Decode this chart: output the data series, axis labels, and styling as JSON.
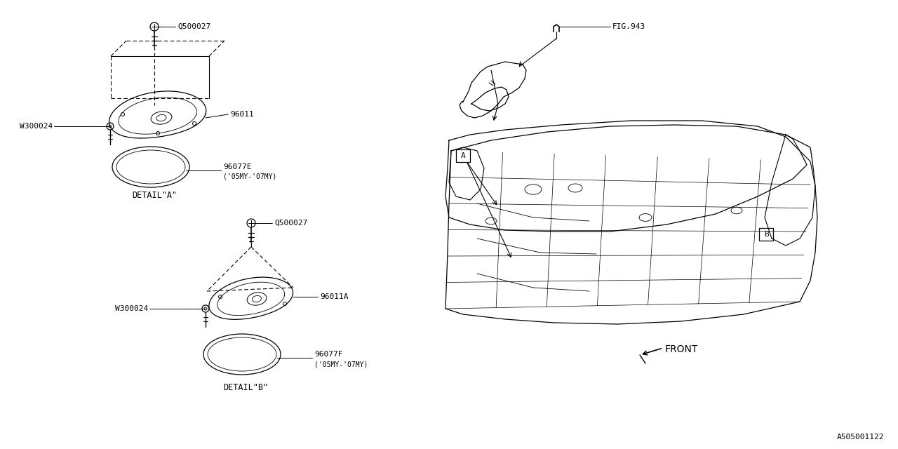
{
  "bg_color": "#FFFFFF",
  "line_color": "#000000",
  "fig_width": 12.8,
  "fig_height": 6.4,
  "dpi": 100,
  "bottom_right_label": "A505001122",
  "detail_a_label": "DETAIL\"A\"",
  "detail_b_label": "DETAIL\"B\"",
  "fig943_label": "FIG.943",
  "front_label": "FRONT",
  "parts": {
    "Q500027_a": "Q500027",
    "W300024_a": "W300024",
    "96011": "96011",
    "96077E": "96077E",
    "96077E_sub": "('05MY-'07MY)",
    "Q500027_b": "Q500027",
    "W300024_b": "W300024",
    "96011A": "96011A",
    "96077F": "96077F",
    "96077F_sub": "('05MY-'07MY)"
  }
}
